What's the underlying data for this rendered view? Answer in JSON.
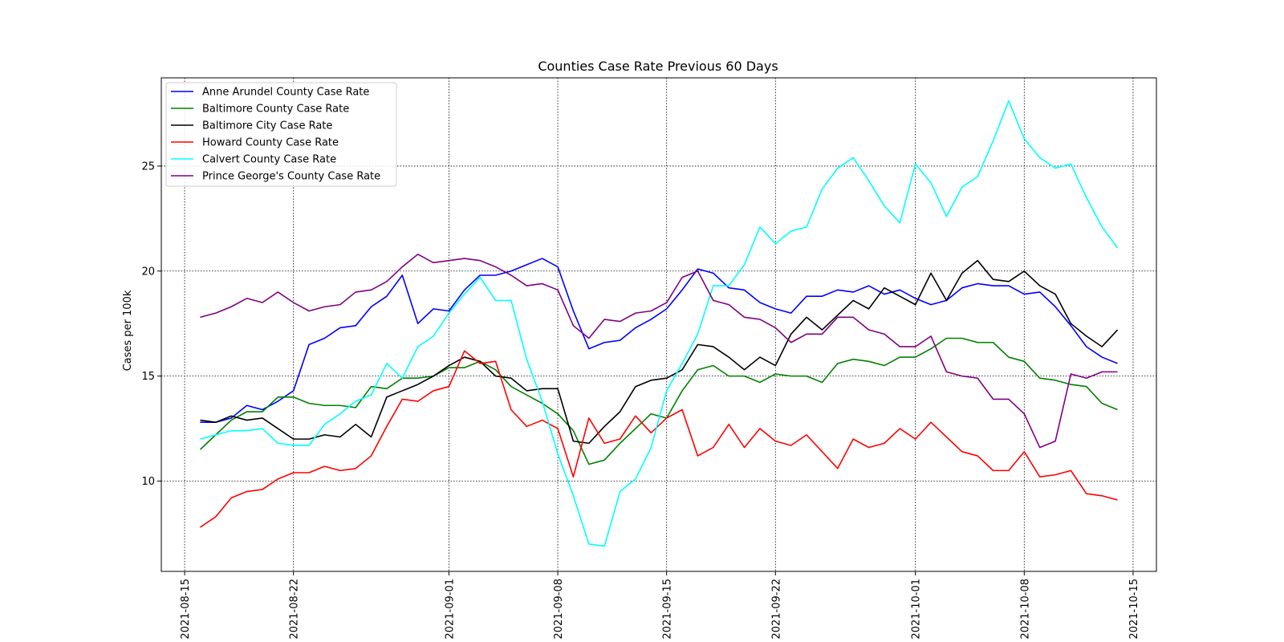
{
  "chart_data": {
    "type": "line",
    "title": "Counties Case Rate Previous 60 Days",
    "xlabel": "",
    "ylabel": "Cases per 100k",
    "x_start": "2021-08-16",
    "x_end": "2021-10-13",
    "xlim": [
      "2021-08-13T12:00",
      "2021-10-16T12:00"
    ],
    "ylim": [
      5.7,
      29.2
    ],
    "x_ticks": [
      "2021-08-15",
      "2021-08-22",
      "2021-09-01",
      "2021-09-08",
      "2021-09-15",
      "2021-09-22",
      "2021-10-01",
      "2021-10-08",
      "2021-10-15"
    ],
    "y_ticks": [
      10,
      15,
      20,
      25
    ],
    "y_tick_labels": [
      "10",
      "15",
      "20",
      "25"
    ],
    "grid": true,
    "legend_position": "upper left",
    "series": [
      {
        "name": "Anne Arundel County Case Rate",
        "color": "#0000ff",
        "values": [
          12.8,
          12.8,
          13.0,
          13.6,
          13.4,
          13.8,
          14.3,
          16.5,
          16.8,
          17.3,
          17.4,
          18.3,
          18.8,
          19.8,
          17.5,
          18.2,
          18.1,
          19.1,
          19.8,
          19.8,
          20.0,
          20.3,
          20.6,
          20.2,
          18.1,
          16.3,
          16.6,
          16.7,
          17.3,
          17.7,
          18.2,
          19.1,
          20.1,
          19.9,
          19.2,
          19.1,
          18.5,
          18.2,
          18.0,
          18.8,
          18.8,
          19.1,
          19.0,
          19.3,
          18.9,
          19.1,
          18.7,
          18.4,
          18.6,
          19.2,
          19.4,
          19.3,
          19.3,
          18.9,
          19.0,
          18.3,
          17.4,
          16.4,
          15.9,
          15.6
        ]
      },
      {
        "name": "Baltimore County Case Rate",
        "color": "#008000",
        "values": [
          11.5,
          12.2,
          12.9,
          13.3,
          13.3,
          14.0,
          14.0,
          13.7,
          13.6,
          13.6,
          13.5,
          14.5,
          14.4,
          14.9,
          14.9,
          15.0,
          15.4,
          15.4,
          15.7,
          15.3,
          14.5,
          14.1,
          13.7,
          13.2,
          12.4,
          10.8,
          11.0,
          11.8,
          12.5,
          13.2,
          13.0,
          14.3,
          15.3,
          15.5,
          15.0,
          15.0,
          14.7,
          15.1,
          15.0,
          15.0,
          14.7,
          15.6,
          15.8,
          15.7,
          15.5,
          15.9,
          15.9,
          16.3,
          16.8,
          16.8,
          16.6,
          16.6,
          15.9,
          15.7,
          14.9,
          14.8,
          14.6,
          14.5,
          13.7,
          13.4
        ]
      },
      {
        "name": "Baltimore City Case Rate",
        "color": "#000000",
        "values": [
          12.9,
          12.8,
          13.1,
          12.9,
          13.0,
          12.5,
          12.0,
          12.0,
          12.2,
          12.1,
          12.7,
          12.1,
          14.0,
          14.3,
          14.6,
          15.0,
          15.5,
          15.9,
          15.7,
          15.0,
          14.9,
          14.3,
          14.4,
          14.4,
          11.9,
          11.8,
          12.6,
          13.3,
          14.5,
          14.8,
          14.9,
          15.3,
          16.5,
          16.4,
          15.9,
          15.3,
          15.9,
          15.5,
          17.0,
          17.8,
          17.2,
          17.9,
          18.6,
          18.2,
          19.2,
          18.8,
          18.4,
          19.9,
          18.6,
          19.9,
          20.5,
          19.6,
          19.5,
          20.0,
          19.3,
          18.9,
          17.5,
          16.9,
          16.4,
          17.2
        ]
      },
      {
        "name": "Howard County Case Rate",
        "color": "#ff0000",
        "values": [
          7.8,
          8.3,
          9.2,
          9.5,
          9.6,
          10.1,
          10.4,
          10.4,
          10.7,
          10.5,
          10.6,
          11.2,
          12.6,
          13.9,
          13.8,
          14.3,
          14.5,
          16.2,
          15.6,
          15.7,
          13.4,
          12.6,
          12.9,
          12.5,
          10.2,
          13.0,
          11.8,
          12.0,
          13.1,
          12.3,
          13.0,
          13.4,
          11.2,
          11.6,
          12.7,
          11.6,
          12.5,
          11.9,
          11.7,
          12.2,
          11.4,
          10.6,
          12.0,
          11.6,
          11.8,
          12.5,
          12.0,
          12.8,
          12.1,
          11.4,
          11.2,
          10.5,
          10.5,
          11.4,
          10.2,
          10.3,
          10.5,
          9.4,
          9.3,
          9.1
        ]
      },
      {
        "name": "Calvert County Case Rate",
        "color": "#00ffff",
        "values": [
          12.0,
          12.2,
          12.4,
          12.4,
          12.5,
          11.8,
          11.7,
          11.7,
          12.7,
          13.2,
          13.8,
          14.1,
          15.6,
          14.9,
          16.4,
          16.9,
          18.0,
          18.9,
          19.7,
          18.6,
          18.6,
          15.8,
          13.8,
          11.3,
          9.3,
          7.0,
          6.9,
          9.5,
          10.1,
          11.6,
          14.3,
          15.6,
          17.0,
          19.3,
          19.3,
          20.3,
          22.1,
          21.3,
          21.9,
          22.1,
          23.9,
          24.9,
          25.4,
          24.3,
          23.1,
          22.3,
          25.1,
          24.2,
          22.6,
          24.0,
          24.5,
          26.2,
          28.1,
          26.3,
          25.4,
          24.9,
          25.1,
          23.5,
          22.1,
          21.1
        ]
      },
      {
        "name": "Prince George's County Case Rate",
        "color": "#800080",
        "values": [
          17.8,
          18.0,
          18.3,
          18.7,
          18.5,
          19.0,
          18.5,
          18.1,
          18.3,
          18.4,
          19.0,
          19.1,
          19.5,
          20.2,
          20.8,
          20.4,
          20.5,
          20.6,
          20.5,
          20.2,
          19.8,
          19.3,
          19.4,
          19.1,
          17.4,
          16.8,
          17.7,
          17.6,
          18.0,
          18.1,
          18.5,
          19.7,
          20.0,
          18.6,
          18.4,
          17.8,
          17.7,
          17.3,
          16.6,
          17.0,
          17.0,
          17.8,
          17.8,
          17.2,
          17.0,
          16.4,
          16.4,
          16.9,
          15.2,
          15.0,
          14.9,
          13.9,
          13.9,
          13.2,
          11.6,
          11.9,
          15.1,
          14.9,
          15.2,
          15.2
        ]
      }
    ]
  }
}
